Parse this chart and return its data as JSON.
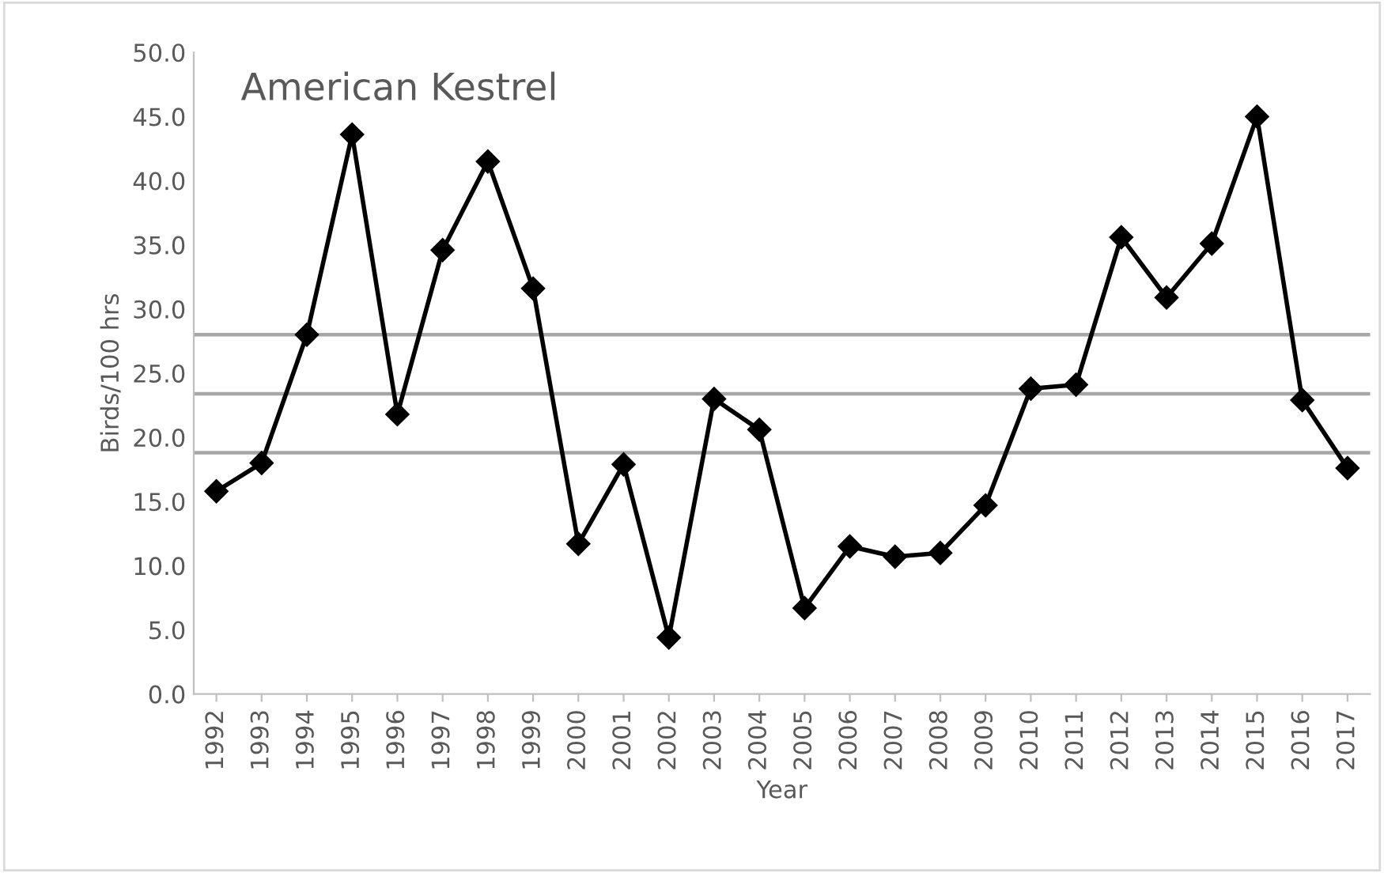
{
  "chart_data": {
    "type": "line",
    "title": "American Kestrel",
    "xlabel": "Year",
    "ylabel": "Birds/100 hrs",
    "categories": [
      "1992",
      "1993",
      "1994",
      "1995",
      "1996",
      "1997",
      "1998",
      "1999",
      "2000",
      "2001",
      "2002",
      "2003",
      "2004",
      "2005",
      "2006",
      "2007",
      "2008",
      "2009",
      "2010",
      "2011",
      "2012",
      "2013",
      "2014",
      "2015",
      "2016",
      "2017"
    ],
    "series": [
      {
        "color": "#000000",
        "values": [
          15.8,
          18.0,
          28.0,
          43.6,
          21.8,
          34.6,
          41.5,
          31.6,
          11.7,
          17.9,
          4.4,
          23.0,
          20.6,
          6.7,
          11.5,
          10.7,
          11.0,
          14.7,
          23.8,
          24.1,
          35.6,
          30.9,
          35.1,
          45.0,
          22.9,
          17.6
        ]
      }
    ],
    "ylim": [
      0,
      50
    ],
    "yticks": [
      {
        "value": 0,
        "label": "0.0"
      },
      {
        "value": 5,
        "label": "5.0"
      },
      {
        "value": 10,
        "label": "10.0"
      },
      {
        "value": 15,
        "label": "15.0"
      },
      {
        "value": 20,
        "label": "20.0"
      },
      {
        "value": 25,
        "label": "25.0"
      },
      {
        "value": 30,
        "label": "30.0"
      },
      {
        "value": 35,
        "label": "35.0"
      },
      {
        "value": 40,
        "label": "40.0"
      },
      {
        "value": 45,
        "label": "45.0"
      },
      {
        "value": 50,
        "label": "50.0"
      }
    ],
    "ref_lines": [
      {
        "axis": "y",
        "value": 28.0,
        "color": "#a6a6a6"
      },
      {
        "axis": "y",
        "value": 23.4,
        "color": "#a6a6a6"
      },
      {
        "axis": "y",
        "value": 18.8,
        "color": "#a6a6a6"
      }
    ],
    "marker": "diamond",
    "line_style": "solid",
    "grid": false,
    "legend": false
  }
}
